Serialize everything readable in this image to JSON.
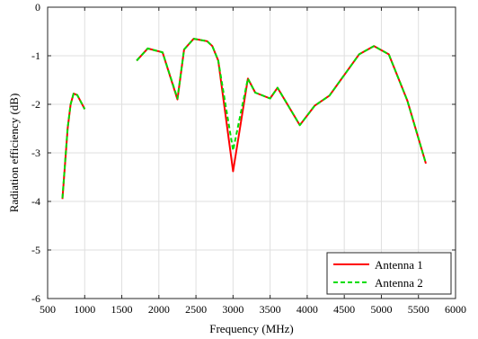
{
  "chart_data": {
    "type": "line",
    "title": "",
    "xlabel": "Frequency (MHz)",
    "ylabel": "Radiation efficiency (dB)",
    "xlim": [
      500,
      6000
    ],
    "ylim": [
      -6,
      0
    ],
    "xticks": [
      500,
      1000,
      1500,
      2000,
      2500,
      3000,
      3500,
      4000,
      4500,
      5000,
      5500,
      6000
    ],
    "yticks": [
      0,
      -1,
      -2,
      -3,
      -4,
      -5,
      -6
    ],
    "xtick_labels": [
      "500",
      "1000",
      "1500",
      "2000",
      "2500",
      "3000",
      "3500",
      "4000",
      "4500",
      "5000",
      "5500",
      "6000"
    ],
    "ytick_labels": [
      "0",
      "-1",
      "-2",
      "-3",
      "-4",
      "-5",
      "-6"
    ],
    "grid": true,
    "legend_position": "bottom-right",
    "series": [
      {
        "name": "Antenna 1",
        "color": "#ff0000",
        "style": "solid",
        "segments": [
          [
            [
              700,
              -3.95
            ],
            [
              770,
              -2.5
            ],
            [
              810,
              -2.0
            ],
            [
              850,
              -1.78
            ],
            [
              900,
              -1.81
            ],
            [
              1000,
              -2.1
            ]
          ],
          [
            [
              1700,
              -1.1
            ],
            [
              1850,
              -0.85
            ],
            [
              2050,
              -0.93
            ],
            [
              2250,
              -1.9
            ],
            [
              2340,
              -0.87
            ],
            [
              2470,
              -0.65
            ],
            [
              2650,
              -0.7
            ],
            [
              2720,
              -0.8
            ],
            [
              2800,
              -1.1
            ],
            [
              3000,
              -3.38
            ],
            [
              3200,
              -1.47
            ],
            [
              3300,
              -1.76
            ],
            [
              3500,
              -1.88
            ],
            [
              3600,
              -1.66
            ],
            [
              3900,
              -2.43
            ],
            [
              4100,
              -2.03
            ],
            [
              4300,
              -1.82
            ],
            [
              4700,
              -0.97
            ],
            [
              4900,
              -0.8
            ],
            [
              5100,
              -0.97
            ],
            [
              5350,
              -1.92
            ],
            [
              5600,
              -3.22
            ]
          ]
        ]
      },
      {
        "name": "Antenna 2",
        "color": "#00dd00",
        "style": "dashed",
        "segments": [
          [
            [
              700,
              -3.93
            ],
            [
              770,
              -2.48
            ],
            [
              810,
              -2.0
            ],
            [
              850,
              -1.78
            ],
            [
              900,
              -1.81
            ],
            [
              1000,
              -2.1
            ]
          ],
          [
            [
              1700,
              -1.1
            ],
            [
              1850,
              -0.85
            ],
            [
              2050,
              -0.93
            ],
            [
              2250,
              -1.88
            ],
            [
              2340,
              -0.87
            ],
            [
              2470,
              -0.65
            ],
            [
              2650,
              -0.7
            ],
            [
              2720,
              -0.8
            ],
            [
              2800,
              -1.1
            ],
            [
              3000,
              -2.95
            ],
            [
              3200,
              -1.47
            ],
            [
              3300,
              -1.76
            ],
            [
              3500,
              -1.88
            ],
            [
              3600,
              -1.66
            ],
            [
              3900,
              -2.43
            ],
            [
              4100,
              -2.03
            ],
            [
              4300,
              -1.82
            ],
            [
              4700,
              -0.97
            ],
            [
              4900,
              -0.8
            ],
            [
              5100,
              -0.97
            ],
            [
              5350,
              -1.92
            ],
            [
              5600,
              -3.22
            ]
          ]
        ]
      }
    ]
  }
}
